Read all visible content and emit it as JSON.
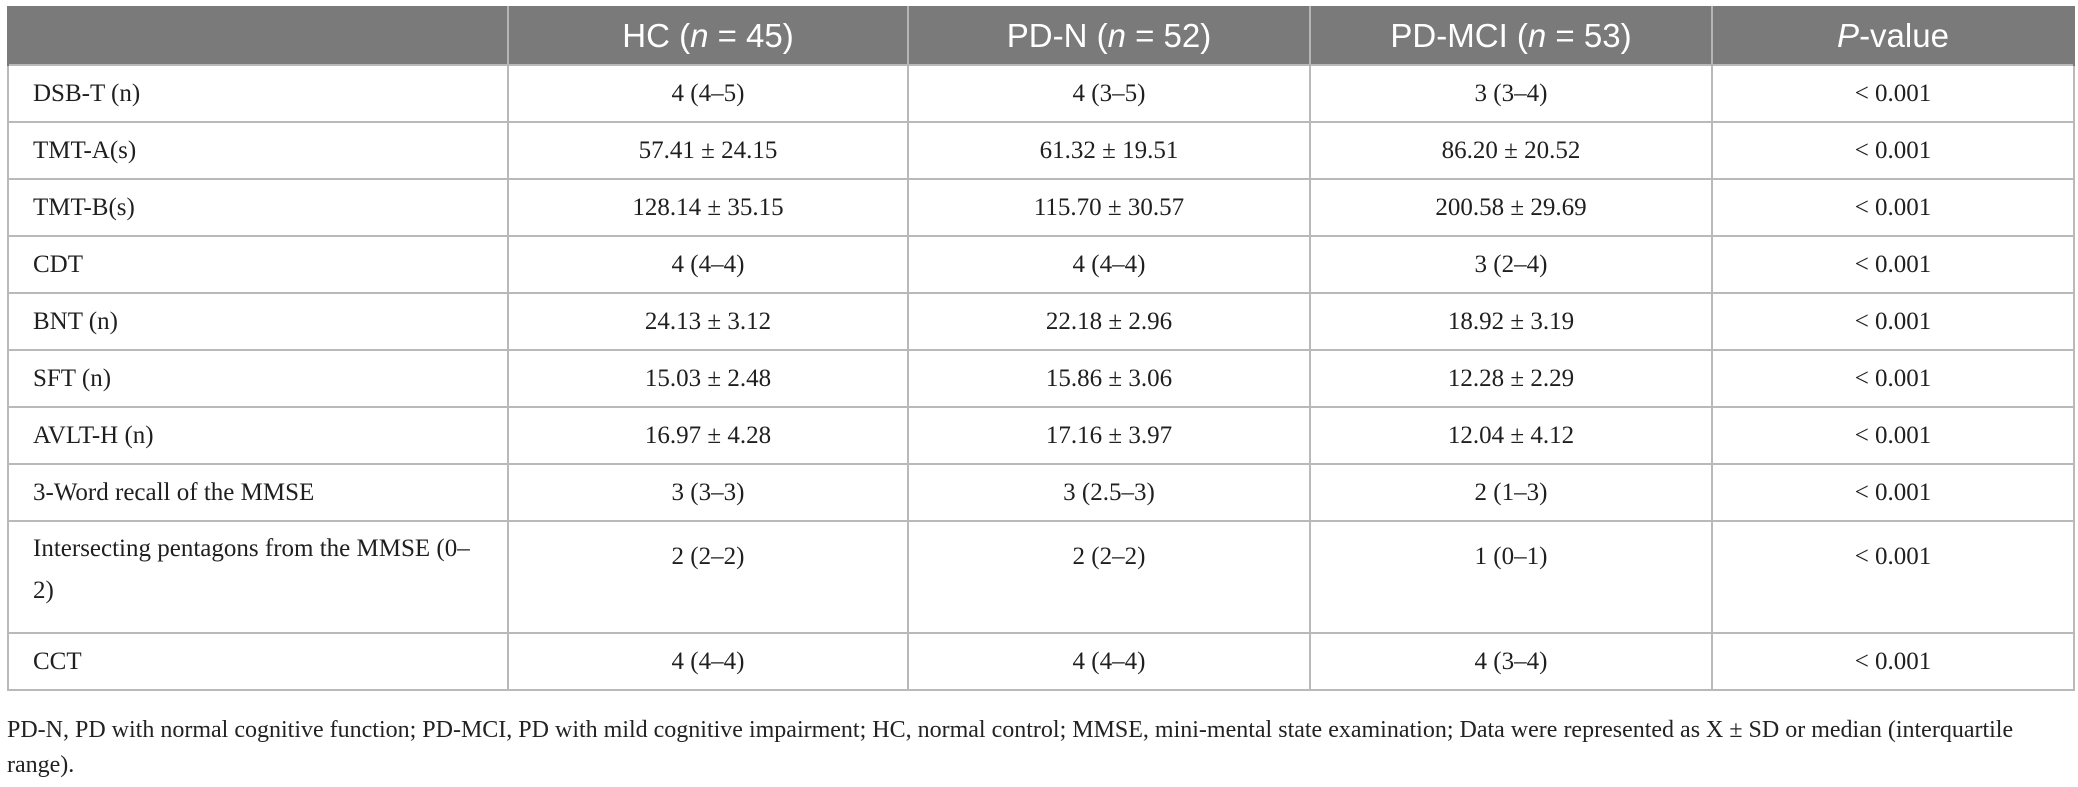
{
  "table": {
    "headers": [
      {
        "pre": "",
        "ital": "",
        "post": ""
      },
      {
        "pre": "HC (",
        "ital": "n",
        "post": " = 45)"
      },
      {
        "pre": "PD-N (",
        "ital": "n",
        "post": " = 52)"
      },
      {
        "pre": "PD-MCI (",
        "ital": "n",
        "post": " = 53)"
      },
      {
        "pre": "",
        "ital": "P",
        "post": "-value"
      }
    ],
    "rows": [
      {
        "label": "DSB-T (n)",
        "hc": "4 (4–5)",
        "pdn": "4 (3–5)",
        "pdmci": "3 (3–4)",
        "p": "< 0.001"
      },
      {
        "label": "TMT-A(s)",
        "hc": "57.41 ± 24.15",
        "pdn": "61.32 ± 19.51",
        "pdmci": "86.20 ± 20.52",
        "p": "< 0.001"
      },
      {
        "label": "TMT-B(s)",
        "hc": "128.14 ± 35.15",
        "pdn": "115.70 ± 30.57",
        "pdmci": "200.58 ± 29.69",
        "p": "< 0.001"
      },
      {
        "label": "CDT",
        "hc": "4 (4–4)",
        "pdn": "4 (4–4)",
        "pdmci": "3 (2–4)",
        "p": "< 0.001"
      },
      {
        "label": "BNT (n)",
        "hc": "24.13 ± 3.12",
        "pdn": "22.18 ± 2.96",
        "pdmci": "18.92 ± 3.19",
        "p": "< 0.001"
      },
      {
        "label": "SFT (n)",
        "hc": "15.03 ± 2.48",
        "pdn": "15.86 ± 3.06",
        "pdmci": "12.28 ± 2.29",
        "p": "< 0.001"
      },
      {
        "label": "AVLT-H (n)",
        "hc": "16.97 ± 4.28",
        "pdn": "17.16 ± 3.97",
        "pdmci": "12.04 ± 4.12",
        "p": "< 0.001"
      },
      {
        "label": "3-Word recall of the MMSE",
        "hc": "3 (3–3)",
        "pdn": "3 (2.5–3)",
        "pdmci": "2 (1–3)",
        "p": "< 0.001"
      },
      {
        "label": "Intersecting pentagons from the MMSE (0–2)",
        "hc": "2 (2–2)",
        "pdn": "2 (2–2)",
        "pdmci": "1 (0–1)",
        "p": "< 0.001",
        "tall": true
      },
      {
        "label": "CCT",
        "hc": "4 (4–4)",
        "pdn": "4 (4–4)",
        "pdmci": "4 (3–4)",
        "p": "< 0.001"
      }
    ]
  },
  "footnote": "PD-N, PD with normal cognitive function; PD-MCI, PD with mild cognitive impairment; HC, normal control; MMSE, mini-mental state examination; Data were represented as X ± SD or median (interquartile range).",
  "colors": {
    "header_bg": "#7a7a7a",
    "header_text": "#ffffff",
    "grid": "#b9b9b9"
  }
}
